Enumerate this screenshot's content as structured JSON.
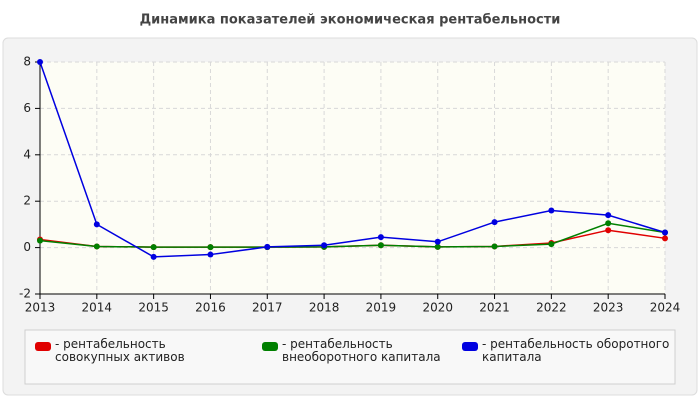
{
  "chart_data": {
    "type": "line",
    "title": "Динамика показателей экономическая рентабельности",
    "x": [
      2013,
      2014,
      2015,
      2016,
      2017,
      2018,
      2019,
      2020,
      2021,
      2022,
      2023,
      2024
    ],
    "series": [
      {
        "name": "- рентабельность совокупных активов",
        "color": "#e00000",
        "values": [
          0.35,
          0.05,
          0.02,
          0.02,
          0.02,
          0.03,
          0.1,
          0.03,
          0.05,
          0.2,
          0.75,
          0.4
        ]
      },
      {
        "name": "- рентабельность внеоборотного капитала",
        "color": "#008000",
        "values": [
          0.3,
          0.05,
          0.02,
          0.02,
          0.02,
          0.03,
          0.1,
          0.03,
          0.05,
          0.15,
          1.05,
          0.65
        ]
      },
      {
        "name": "- рентабельность оборотного капитала",
        "color": "#0000e0",
        "values": [
          8,
          1.0,
          -0.4,
          -0.3,
          0.03,
          0.1,
          0.45,
          0.25,
          1.1,
          1.6,
          1.4,
          0.65
        ]
      }
    ],
    "xlim": [
      2013,
      2024
    ],
    "xticks": [
      2013,
      2014,
      2015,
      2016,
      2017,
      2018,
      2019,
      2020,
      2021,
      2022,
      2023,
      2024
    ],
    "ylim": [
      -2,
      8
    ],
    "yticks": [
      -2,
      0,
      2,
      4,
      6,
      8
    ],
    "grid": true
  }
}
